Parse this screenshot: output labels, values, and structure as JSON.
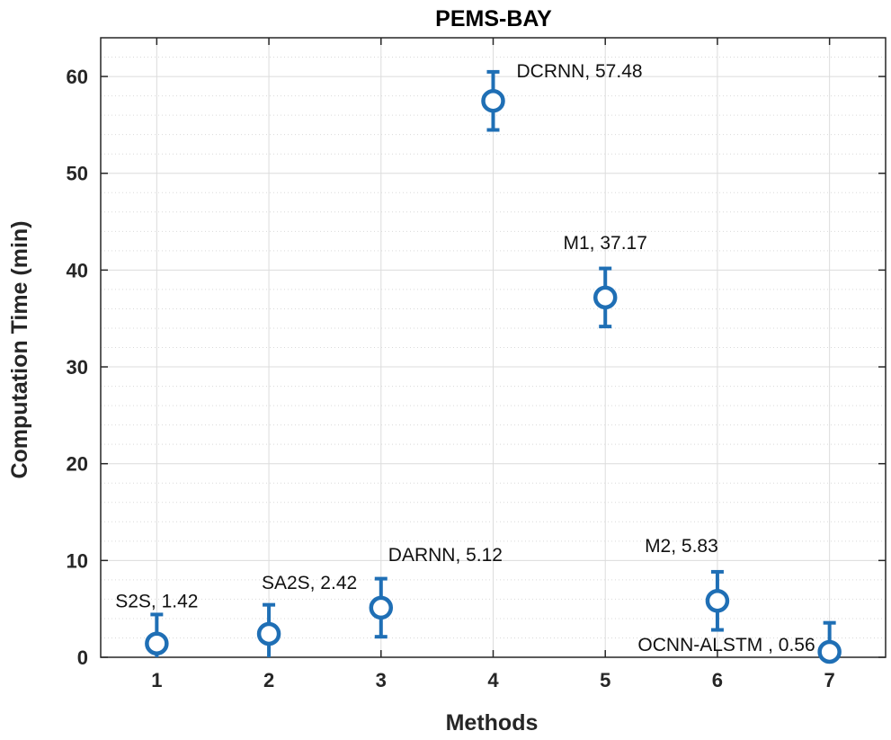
{
  "chart_data": {
    "type": "scatter",
    "title": "PEMS-BAY",
    "xlabel": "Methods",
    "ylabel": "Computation Time (min)",
    "xlim": [
      0.5,
      7.5
    ],
    "ylim": [
      0,
      64
    ],
    "xticks": [
      1,
      2,
      3,
      4,
      5,
      6,
      7
    ],
    "yticks": [
      0,
      10,
      20,
      30,
      40,
      50,
      60
    ],
    "minor_yticks": [
      2,
      4,
      6,
      8,
      12,
      14,
      16,
      18,
      22,
      24,
      26,
      28,
      32,
      34,
      36,
      38,
      42,
      44,
      46,
      48,
      52,
      54,
      56,
      58,
      62
    ],
    "grid": true,
    "marker_color": "#1f6fb5",
    "error_half_width": 3,
    "series": [
      {
        "name": "Computation Time",
        "points": [
          {
            "x": 1,
            "y": 1.42,
            "method": "S2S",
            "label": "S2S, 1.42"
          },
          {
            "x": 2,
            "y": 2.42,
            "method": "SA2S",
            "label": "SA2S, 2.42"
          },
          {
            "x": 3,
            "y": 5.12,
            "method": "DARNN",
            "label": "DARNN, 5.12"
          },
          {
            "x": 4,
            "y": 57.48,
            "method": "DCRNN",
            "label": "DCRNN, 57.48"
          },
          {
            "x": 5,
            "y": 37.17,
            "method": "M1",
            "label": "M1, 37.17"
          },
          {
            "x": 6,
            "y": 5.83,
            "method": "M2",
            "label": "M2, 5.83"
          },
          {
            "x": 7,
            "y": 0.56,
            "method": "OCNN-ALSTM",
            "label": "OCNN-ALSTM , 0.56"
          }
        ]
      }
    ]
  }
}
